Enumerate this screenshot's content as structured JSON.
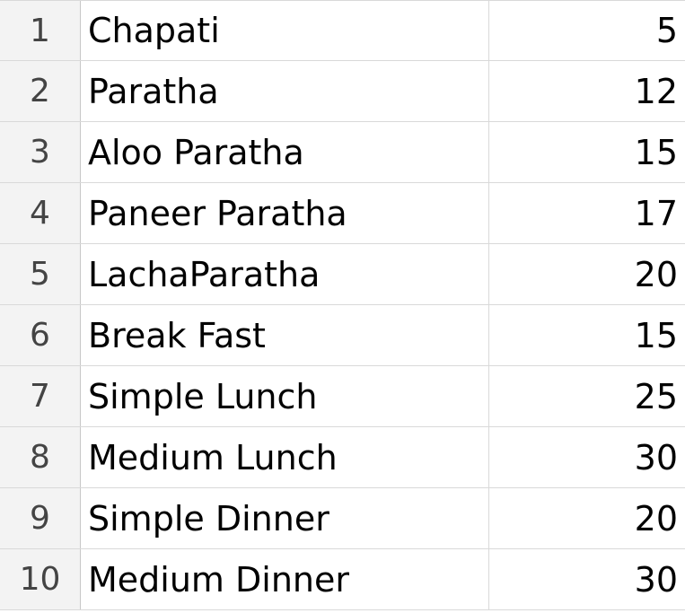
{
  "rows": [
    {
      "num": "1",
      "name": "Chapati",
      "price": "5"
    },
    {
      "num": "2",
      "name": "Paratha",
      "price": "12"
    },
    {
      "num": "3",
      "name": "Aloo Paratha",
      "price": "15"
    },
    {
      "num": "4",
      "name": "Paneer Paratha",
      "price": "17"
    },
    {
      "num": "5",
      "name": "LachaParatha",
      "price": "20"
    },
    {
      "num": "6",
      "name": "Break Fast",
      "price": "15"
    },
    {
      "num": "7",
      "name": "Simple Lunch",
      "price": "25"
    },
    {
      "num": "8",
      "name": "Medium Lunch",
      "price": "30"
    },
    {
      "num": "9",
      "name": "Simple Dinner",
      "price": "20"
    },
    {
      "num": "10",
      "name": "Medium Dinner",
      "price": "30"
    }
  ]
}
